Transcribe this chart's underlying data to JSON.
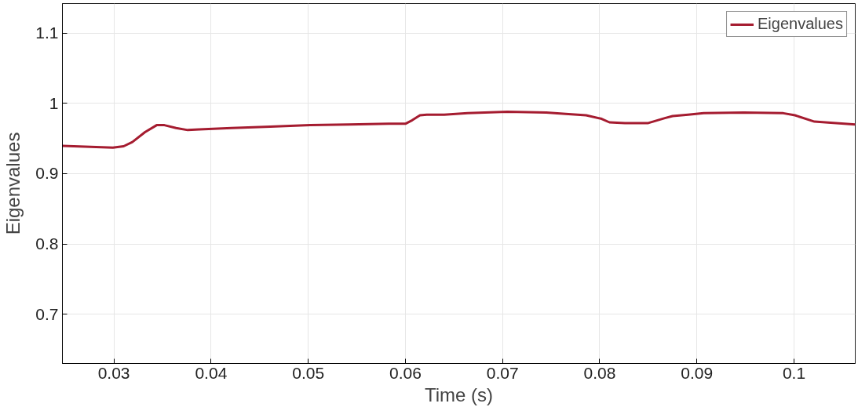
{
  "chart_data": {
    "type": "line",
    "xlabel": "Time (s)",
    "ylabel": "Eigenvalues",
    "xlim": [
      0.0247,
      0.1063
    ],
    "ylim": [
      0.63,
      1.142
    ],
    "xticks": [
      0.03,
      0.04,
      0.05,
      0.06,
      0.07,
      0.08,
      0.09,
      0.1
    ],
    "yticks": [
      0.7,
      0.8,
      0.9,
      1,
      1.1
    ],
    "grid": true,
    "legend": "top right",
    "marker": "none",
    "line_style": "solid",
    "x": [
      0.0247,
      0.0299,
      0.031,
      0.0319,
      0.0332,
      0.0344,
      0.0352,
      0.0364,
      0.0376,
      0.0388,
      0.0421,
      0.0461,
      0.0502,
      0.0542,
      0.0583,
      0.06,
      0.0607,
      0.0615,
      0.0622,
      0.064,
      0.0664,
      0.0705,
      0.0745,
      0.0765,
      0.0786,
      0.0802,
      0.081,
      0.0826,
      0.085,
      0.0867,
      0.0875,
      0.0891,
      0.0907,
      0.0948,
      0.0989,
      0.1001,
      0.1021,
      0.1063
    ],
    "series": [
      {
        "name": "Eigenvalues",
        "color": "#a51c30",
        "values": [
          0.9395,
          0.937,
          0.939,
          0.945,
          0.959,
          0.969,
          0.969,
          0.965,
          0.962,
          0.963,
          0.965,
          0.967,
          0.969,
          0.97,
          0.971,
          0.971,
          0.976,
          0.983,
          0.984,
          0.984,
          0.986,
          0.988,
          0.987,
          0.985,
          0.983,
          0.978,
          0.973,
          0.972,
          0.972,
          0.979,
          0.982,
          0.984,
          0.986,
          0.987,
          0.986,
          0.983,
          0.974,
          0.97
        ]
      }
    ]
  }
}
